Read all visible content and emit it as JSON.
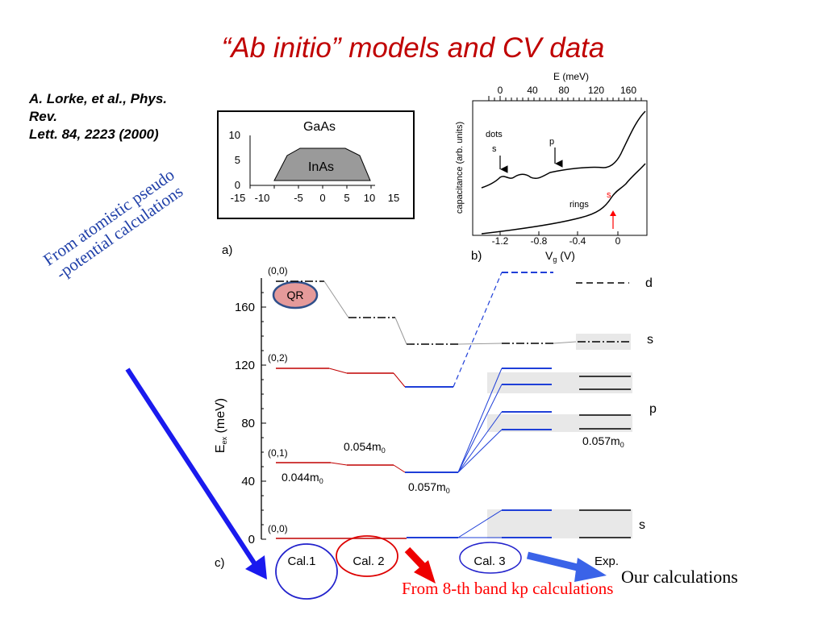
{
  "title": "“Ab initio” models and CV data",
  "citation": [
    "A. Lorke, et al., Phys.",
    "Rev.",
    "Lett. 84, 2223 (2000)"
  ],
  "annotations": {
    "atomistic": [
      "From atomistic pseudo",
      "-potential calculations"
    ],
    "kp": "From 8-th band kp calculations",
    "ours": "Our calculations"
  },
  "colors": {
    "title": "#c00000",
    "blue": "#1f3fa8",
    "red": "#ff0000"
  },
  "figure_a": {
    "label": "a)",
    "barrier_label": "GaAs",
    "dot_label": "InAs",
    "xticks": [
      "-15",
      "-10",
      "-5",
      "0",
      "5",
      "10",
      "15"
    ],
    "yticks": [
      "10",
      "5",
      "0"
    ]
  },
  "figure_b": {
    "label": "b)",
    "top_axis_label": "E (meV)",
    "top_ticks": [
      "0",
      "40",
      "80",
      "120",
      "160"
    ],
    "bottom_ticks": [
      "-1.2",
      "-0.8",
      "-0.4",
      "0"
    ],
    "bottom_axis_label": "V",
    "bottom_axis_sub": "g",
    "bottom_axis_unit": " (V)",
    "ylabel": "capacitance  (arb. units)",
    "labels": {
      "dots": "dots",
      "s": "s",
      "p": "p",
      "rings": "rings",
      "s_red": "s"
    }
  },
  "figure_c": {
    "label": "c)",
    "ylabel": "E",
    "ylabel_sub": "ex",
    "ylabel_unit": " (meV)",
    "yticks": [
      "160",
      "120",
      "80",
      "40",
      "0"
    ],
    "state_labels": [
      "(0,0)",
      "(0,2)",
      "(0,1)",
      "(0,0)"
    ],
    "qr": "QR",
    "masses": {
      "m1": "0.044m",
      "m2": "0.054m",
      "m3": "0.057m",
      "m4": "0.057m",
      "sub": "0"
    },
    "shell_labels": {
      "d": "d",
      "s_upper": "s",
      "p": "p",
      "s_lower": "s"
    },
    "columns": [
      "Cal.1",
      "Cal. 2",
      "Cal. 3",
      "Exp."
    ]
  }
}
